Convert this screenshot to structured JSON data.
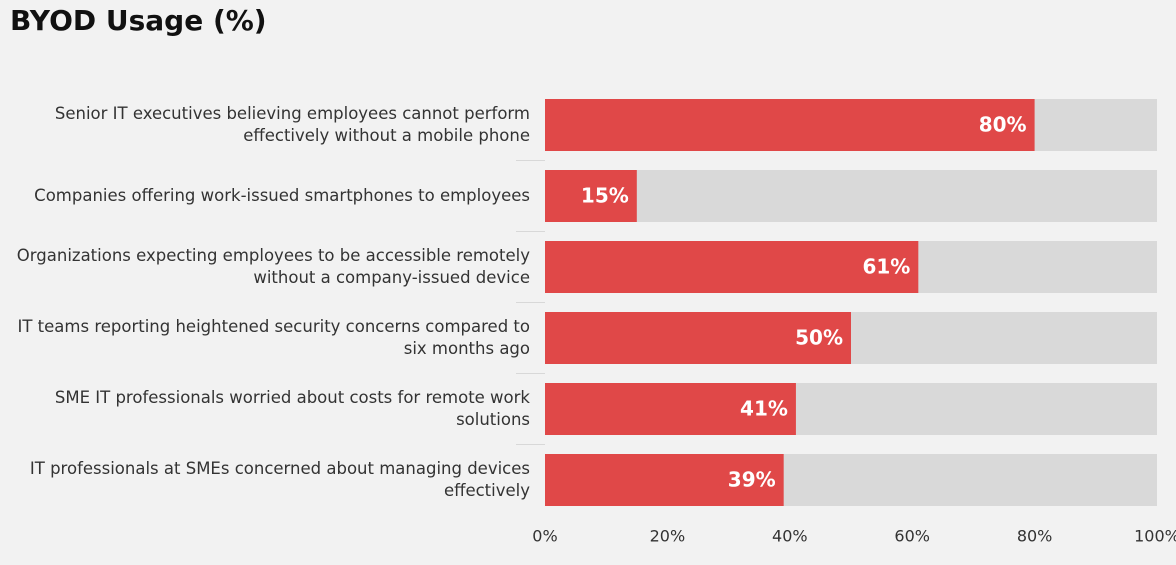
{
  "chart_data": {
    "type": "hbar",
    "title": "BYOD Usage (%)",
    "categories": [
      "Senior IT executives believing employees cannot perform effectively without a mobile phone",
      "Companies offering work-issued smartphones to employees",
      "Organizations expecting employees to be accessible remotely without a company-issued device",
      "IT teams reporting heightened security concerns compared to six months ago",
      "SME IT professionals worried about costs for remote work solutions",
      "IT professionals at SMEs concerned about managing devices effectively"
    ],
    "values": [
      80,
      15,
      61,
      50,
      41,
      39
    ],
    "value_labels": [
      "80%",
      "15%",
      "61%",
      "50%",
      "41%",
      "39%"
    ],
    "color": "#e04848",
    "track_color": "#d9d9d9",
    "xlim": [
      0,
      100
    ],
    "xticks": [
      {
        "value": 0,
        "label": "0%"
      },
      {
        "value": 20,
        "label": "20%"
      },
      {
        "value": 40,
        "label": "40%"
      },
      {
        "value": 60,
        "label": "60%"
      },
      {
        "value": 80,
        "label": "80%"
      },
      {
        "value": 100,
        "label": "100%"
      }
    ]
  }
}
